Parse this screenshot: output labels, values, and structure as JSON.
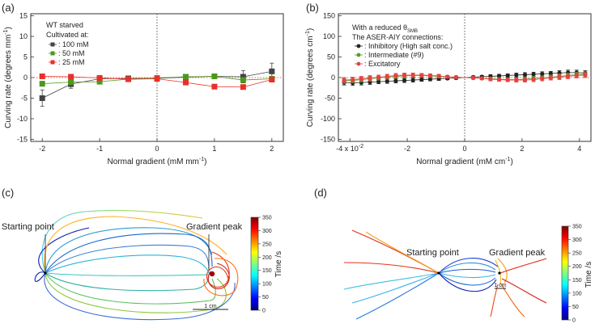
{
  "chart_data": [
    {
      "id": "a",
      "type": "line",
      "panel_label": "(a)",
      "xlabel": "Normal gradient  (mM mm",
      "xlabel_sup": "-1",
      "xlabel_end": ")",
      "ylabel": "Curving rate  (degrees mm",
      "ylabel_sup": "-1",
      "ylabel_end": ")",
      "xlim": [
        -2.2,
        2.2
      ],
      "ylim": [
        -15.5,
        15.5
      ],
      "xticks": [
        "-2",
        "-1",
        "0",
        "1",
        "2"
      ],
      "xtick_values": [
        -2,
        -1,
        0,
        1,
        2
      ],
      "yticks": [
        "-15",
        "-10",
        "-5",
        "0",
        "5",
        "10",
        "15"
      ],
      "ytick_values": [
        -15,
        -10,
        -5,
        0,
        5,
        10,
        15
      ],
      "legend_title": [
        "WT starved",
        "Cultivated at:"
      ],
      "series": [
        {
          "name": ": 100 mM",
          "color": "#444444",
          "marker": "square",
          "x": [
            -2,
            -1.5,
            -1,
            -0.5,
            0,
            0.5,
            1,
            1.5,
            2
          ],
          "y": [
            -5,
            -1.6,
            -0.3,
            -0.2,
            -0.2,
            0.1,
            0.3,
            0.2,
            1.5
          ],
          "err": [
            2.0,
            1.0,
            0.5,
            0.4,
            0.3,
            0.4,
            0.5,
            1.5,
            2.0
          ]
        },
        {
          "name": ": 50 mM",
          "color": "#4a9a1a",
          "marker": "square",
          "x": [
            -2,
            -1.5,
            -1,
            -0.5,
            0,
            0.5,
            1,
            1.5,
            2
          ],
          "y": [
            -1.5,
            -1.1,
            -1.0,
            -0.4,
            -0.1,
            0.2,
            0.3,
            -0.6,
            -0.3
          ],
          "err": [
            0.6,
            0.5,
            0.4,
            0.3,
            0.3,
            0.3,
            0.3,
            0.5,
            0.4
          ]
        },
        {
          "name": ": 25 mM",
          "color": "#e8302a",
          "marker": "square",
          "x": [
            -2,
            -1.5,
            -1,
            -0.5,
            0,
            0.5,
            1,
            1.5,
            2
          ],
          "y": [
            0.3,
            0.2,
            -0.1,
            -0.4,
            -0.3,
            -1.2,
            -2.2,
            -2.3,
            -0.5
          ],
          "err": [
            0.4,
            0.4,
            0.3,
            0.3,
            0.3,
            0.4,
            0.5,
            0.5,
            0.4
          ]
        }
      ]
    },
    {
      "id": "b",
      "type": "line",
      "panel_label": "(b)",
      "xlabel": "Normal gradient  (mM cm",
      "xlabel_sup": "-1",
      "xlabel_end": ")",
      "ylabel": "Curving rate  (degrees cm",
      "ylabel_sup": "-1",
      "ylabel_end": ")",
      "xlim": [
        -4.4,
        4.4
      ],
      "ylim": [
        -155,
        155
      ],
      "xticks": [
        "-4 x 10",
        "-2",
        "0",
        "2",
        "4"
      ],
      "xtick_sup": "-2",
      "xtick_values": [
        -4,
        -2,
        0,
        2,
        4
      ],
      "yticks": [
        "-150",
        "-100",
        "-50",
        "0",
        "50",
        "100",
        "150"
      ],
      "ytick_values": [
        -150,
        -100,
        -50,
        0,
        50,
        100,
        150
      ],
      "legend_title": [
        "With a reduced θ",
        "The ASER-AIY connections:"
      ],
      "legend_title_sub": "SMB",
      "series": [
        {
          "name": ": Inhibitory (High salt conc.)",
          "color": "#222222",
          "marker": "circle",
          "x": [
            -4.2,
            -3.9,
            -3.6,
            -3.3,
            -3.0,
            -2.7,
            -2.4,
            -2.1,
            -1.8,
            -1.5,
            -1.2,
            -0.9,
            -0.6,
            -0.3,
            0.3,
            0.6,
            0.9,
            1.2,
            1.5,
            1.8,
            2.1,
            2.4,
            2.7,
            3.0,
            3.3,
            3.6,
            3.9,
            4.2
          ],
          "y": [
            -12,
            -13,
            -12,
            -11,
            -10,
            -9,
            -8,
            -7,
            -6,
            -5,
            -4,
            -3,
            -2,
            -1,
            1,
            2,
            3,
            4,
            5,
            6,
            7,
            8,
            9,
            10,
            11,
            12,
            12,
            11
          ],
          "err": [
            6,
            6,
            6,
            6,
            5,
            5,
            5,
            5,
            5,
            4,
            4,
            4,
            3,
            3,
            3,
            3,
            4,
            4,
            4,
            5,
            5,
            5,
            5,
            5,
            6,
            6,
            6,
            6
          ]
        },
        {
          "name": ": Intermediate (#9)",
          "color": "#5a9a2a",
          "marker": "circle",
          "x": [
            -4.2,
            -3.9,
            -3.6,
            -3.3,
            -3.0,
            -2.7,
            -2.4,
            -2.1,
            -1.8,
            -1.5,
            -1.2,
            -0.9,
            -0.6,
            -0.3,
            0.3,
            0.6,
            0.9,
            1.2,
            1.5,
            1.8,
            2.1,
            2.4,
            2.7,
            3.0,
            3.3,
            3.6,
            3.9,
            4.2
          ],
          "y": [
            -8,
            -7,
            -5,
            -3,
            -1,
            1,
            3,
            4,
            5,
            5,
            4,
            3,
            2,
            1,
            -1,
            -2,
            -3,
            -4,
            -5,
            -5,
            -4,
            -2,
            -1,
            1,
            3,
            5,
            7,
            8
          ],
          "err": [
            6,
            6,
            6,
            6,
            5,
            5,
            5,
            5,
            5,
            4,
            4,
            4,
            3,
            3,
            3,
            3,
            4,
            4,
            4,
            5,
            5,
            5,
            5,
            5,
            6,
            6,
            6,
            6
          ]
        },
        {
          "name": ": Excitatory",
          "color": "#e84040",
          "marker": "circle",
          "x": [
            -4.2,
            -3.9,
            -3.6,
            -3.3,
            -3.0,
            -2.7,
            -2.4,
            -2.1,
            -1.8,
            -1.5,
            -1.2,
            -0.9,
            -0.6,
            -0.3,
            0.3,
            0.6,
            0.9,
            1.2,
            1.5,
            1.8,
            2.1,
            2.4,
            2.7,
            3.0,
            3.3,
            3.6,
            3.9,
            4.2
          ],
          "y": [
            -6,
            -5,
            -3,
            -1,
            1,
            3,
            5,
            6,
            6,
            6,
            5,
            4,
            2,
            1,
            -1,
            -2,
            -4,
            -5,
            -6,
            -6,
            -6,
            -5,
            -3,
            -1,
            1,
            3,
            5,
            6
          ],
          "err": [
            6,
            6,
            6,
            6,
            5,
            5,
            5,
            5,
            5,
            4,
            4,
            4,
            3,
            3,
            3,
            3,
            4,
            4,
            4,
            5,
            5,
            5,
            5,
            5,
            6,
            6,
            6,
            6
          ]
        }
      ]
    },
    {
      "id": "c",
      "type": "trajectory",
      "panel_label": "(c)",
      "start_label": "Starting point",
      "peak_label": "Gradient peak",
      "scale_label": "1 cm",
      "colorbar_label": "Time /s",
      "colorbar_ticks": [
        "0",
        "50",
        "100",
        "150",
        "200",
        "250",
        "300",
        "350"
      ],
      "colorbar_range": [
        0,
        350
      ]
    },
    {
      "id": "d",
      "type": "trajectory",
      "panel_label": "(d)",
      "start_label": "Starting point",
      "peak_label": "Gradient peak",
      "scale_label": "1 cm",
      "colorbar_label": "Time /s",
      "colorbar_ticks": [
        "0",
        "50",
        "100",
        "150",
        "200",
        "250",
        "300",
        "350"
      ],
      "colorbar_range": [
        0,
        350
      ]
    }
  ]
}
